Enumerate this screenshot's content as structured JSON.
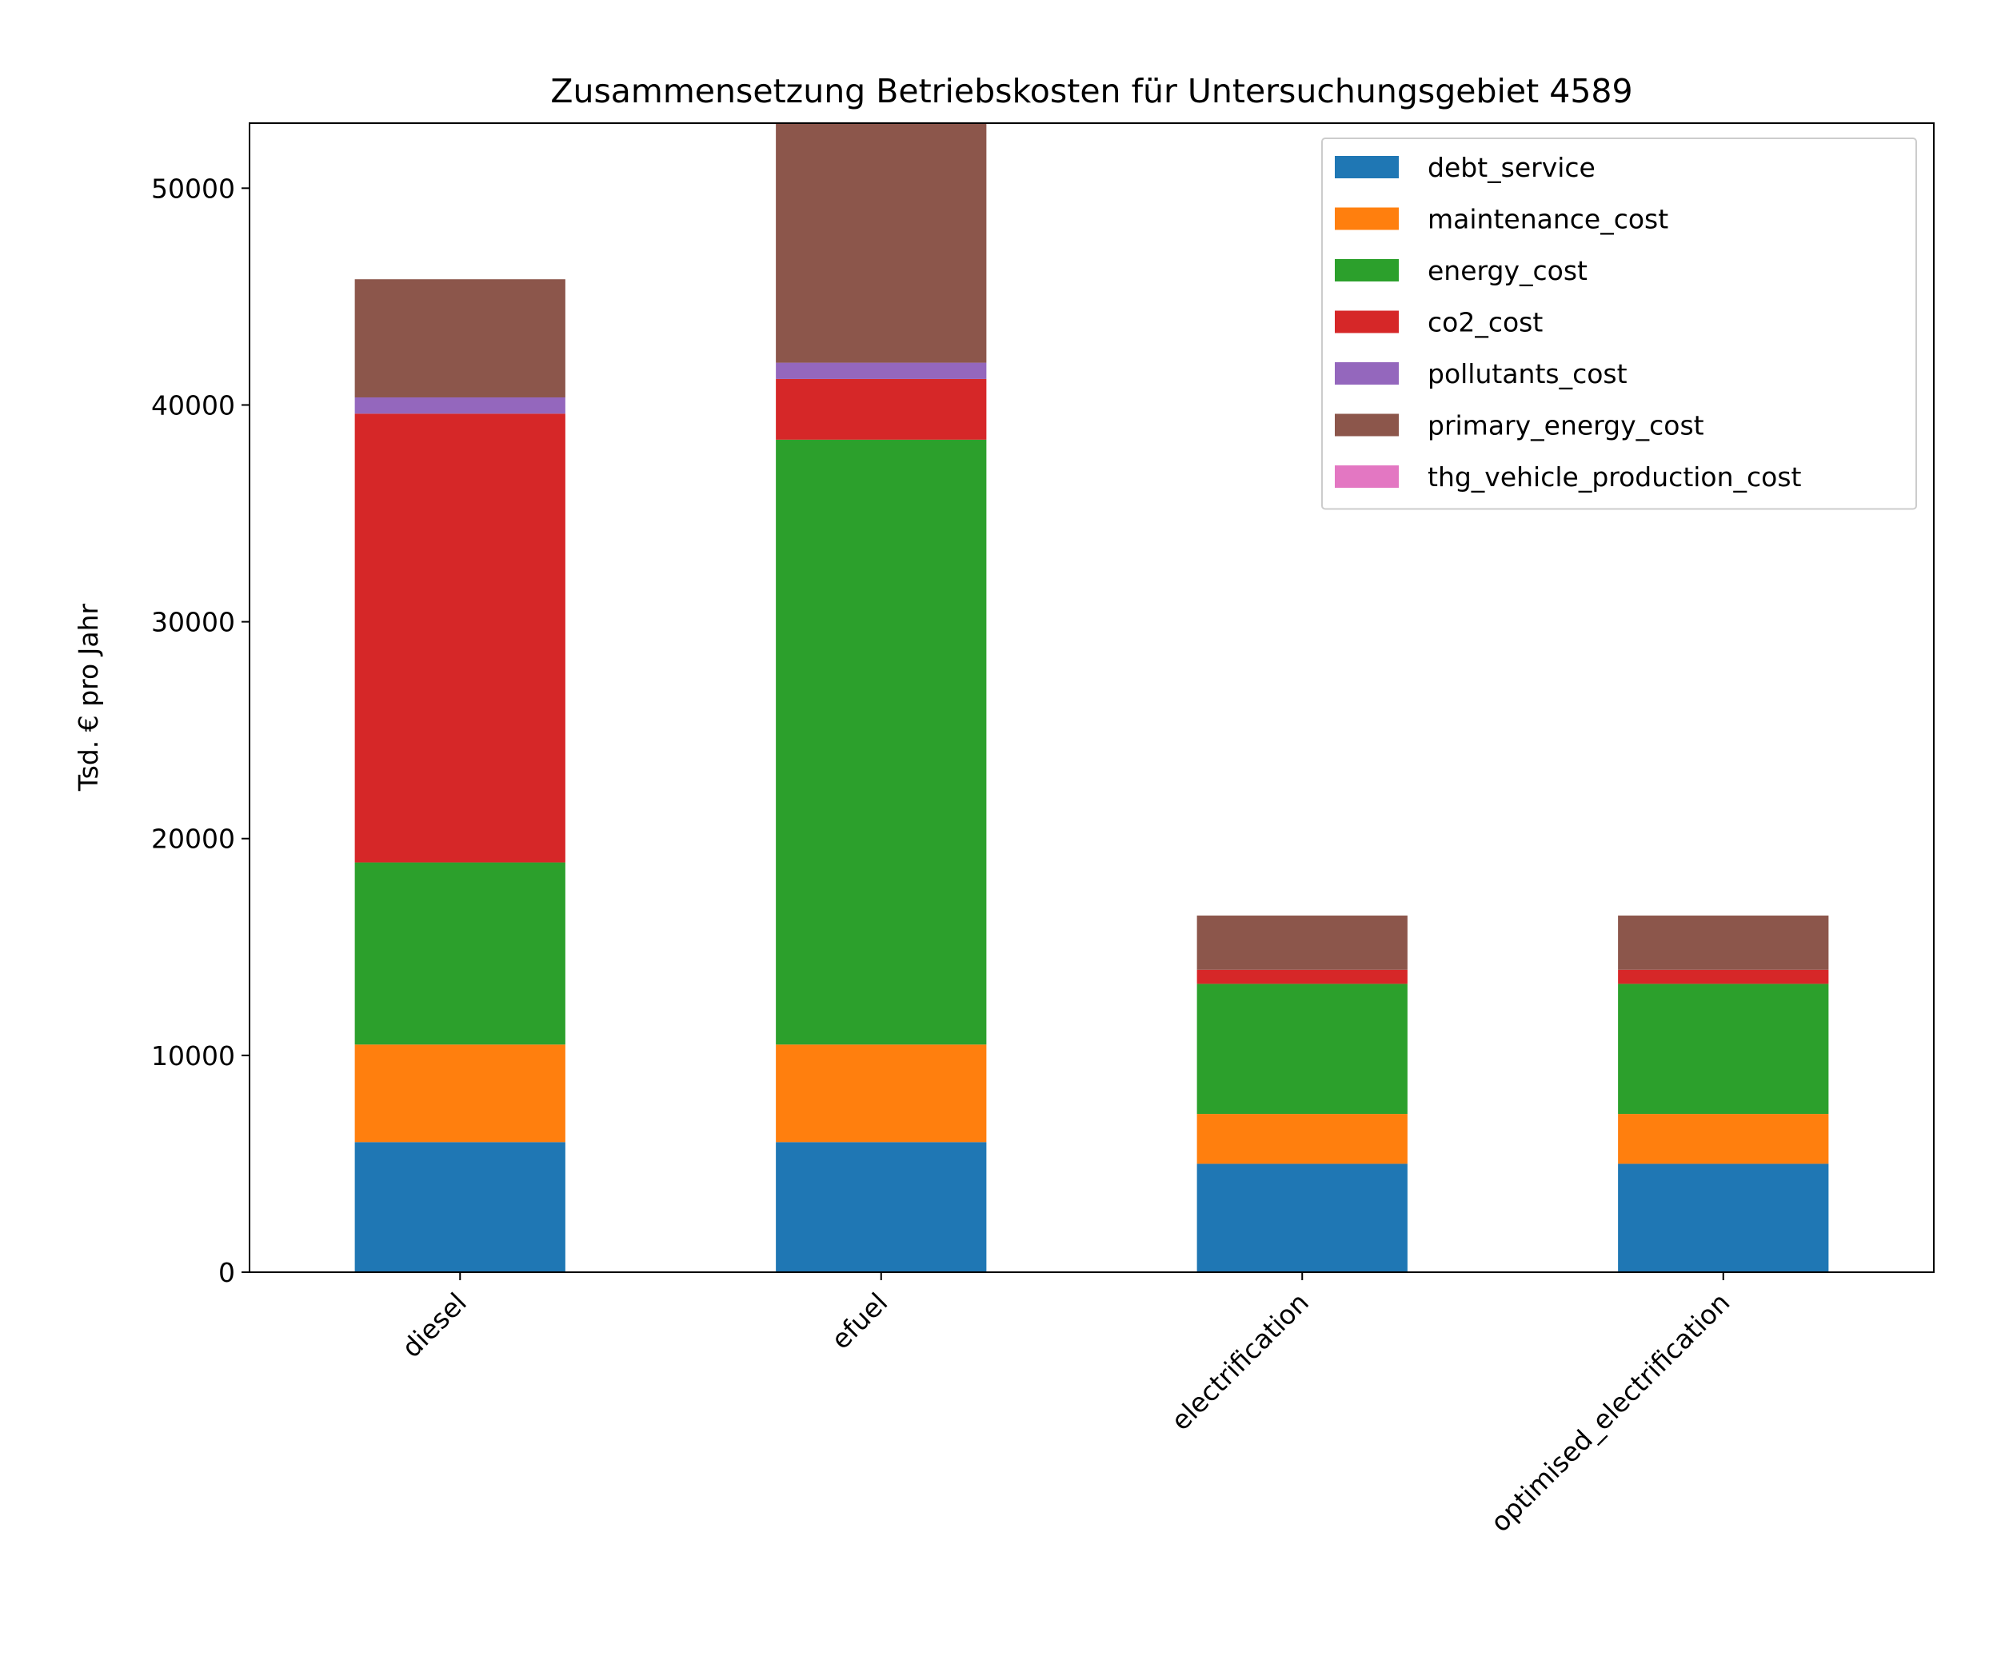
{
  "chart_data": {
    "type": "bar",
    "stacked": true,
    "title": "Zusammensetzung Betriebskosten für Untersuchungsgebiet 4589",
    "xlabel": "",
    "ylabel": "Tsd. € pro Jahr",
    "ylim": [
      0,
      53000
    ],
    "yticks": [
      0,
      10000,
      20000,
      30000,
      40000,
      50000
    ],
    "ytick_labels": [
      "0",
      "10000",
      "20000",
      "30000",
      "40000",
      "50000"
    ],
    "categories": [
      "diesel",
      "efuel",
      "electrification",
      "optimised_electrification"
    ],
    "legend_position": "top-right",
    "grid": false,
    "series": [
      {
        "name": "debt_service",
        "color": "#1f77b4",
        "values": [
          6000,
          6000,
          5000,
          5000
        ]
      },
      {
        "name": "maintenance_cost",
        "color": "#ff7f0e",
        "values": [
          4500,
          4500,
          2300,
          2300
        ]
      },
      {
        "name": "energy_cost",
        "color": "#2ca02c",
        "values": [
          8400,
          27900,
          6000,
          6000
        ]
      },
      {
        "name": "co2_cost",
        "color": "#d62728",
        "values": [
          20700,
          2800,
          650,
          650
        ]
      },
      {
        "name": "pollutants_cost",
        "color": "#9467bd",
        "values": [
          750,
          750,
          0,
          0
        ]
      },
      {
        "name": "primary_energy_cost",
        "color": "#8c564b",
        "values": [
          5450,
          11050,
          2500,
          2500
        ]
      },
      {
        "name": "thg_vehicle_production_cost",
        "color": "#e377c2",
        "values": [
          0,
          0,
          0,
          0
        ]
      }
    ]
  }
}
